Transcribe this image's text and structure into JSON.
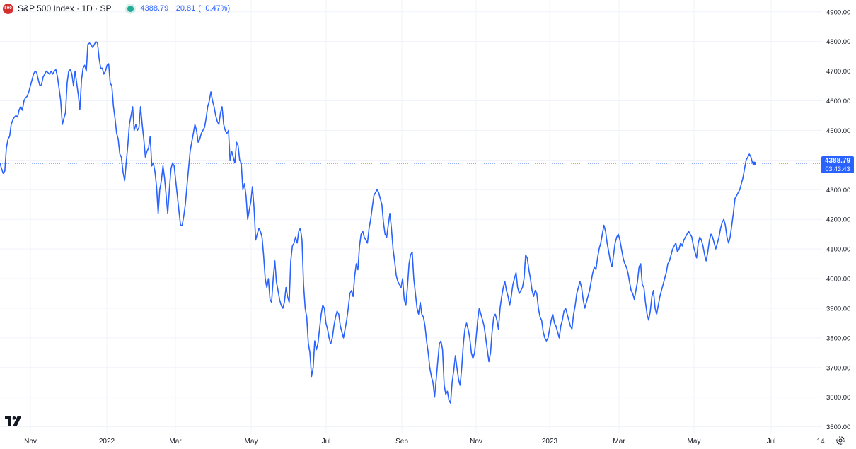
{
  "legend": {
    "logo_text": "500",
    "symbol": "S&P 500 Index · 1D · SP",
    "price": "4388.79",
    "change": "−20.81",
    "change_pct": "(−0.47%)"
  },
  "price_badge": {
    "price": "4388.79",
    "countdown": "03:43:43"
  },
  "icons": {
    "logo": "tradingview-logo",
    "settings": "settings-gear-icon",
    "status": "market-status-dot"
  },
  "colors": {
    "line": "#2962ff",
    "badge": "#2962ff",
    "status_dot": "#22ab94",
    "logo": "#d32f2f",
    "grid": "#f0f3fa",
    "axis_text": "#131722"
  },
  "chart_data": {
    "type": "line",
    "title": "S&P 500 Index · 1D · SP",
    "xlabel": "",
    "ylabel": "",
    "ylim": [
      3480,
      4940
    ],
    "y_ticks": [
      "3500.00",
      "3600.00",
      "3700.00",
      "3800.00",
      "3900.00",
      "4000.00",
      "4100.00",
      "4200.00",
      "4300.00",
      "4400.00",
      "4500.00",
      "4600.00",
      "4700.00",
      "4800.00",
      "4900.00"
    ],
    "x_ticks": [
      "Nov",
      "2022",
      "Mar",
      "May",
      "Jul",
      "Sep",
      "Nov",
      "2023",
      "Mar",
      "May",
      "Jul",
      "14"
    ],
    "last_value": 4388.79,
    "grid": true,
    "series": [
      {
        "values": [
          4390,
          4370,
          4355,
          4363,
          4440,
          4470,
          4480,
          4520,
          4535,
          4545,
          4550,
          4545,
          4570,
          4580,
          4568,
          4600,
          4610,
          4615,
          4630,
          4650,
          4670,
          4690,
          4700,
          4695,
          4670,
          4650,
          4655,
          4680,
          4690,
          4700,
          4695,
          4690,
          4700,
          4690,
          4700,
          4705,
          4680,
          4640,
          4600,
          4520,
          4540,
          4560,
          4660,
          4700,
          4705,
          4690,
          4650,
          4700,
          4660,
          4620,
          4570,
          4670,
          4710,
          4720,
          4700,
          4790,
          4795,
          4790,
          4780,
          4790,
          4800,
          4795,
          4745,
          4710,
          4710,
          4690,
          4700,
          4720,
          4725,
          4660,
          4650,
          4580,
          4540,
          4490,
          4470,
          4420,
          4410,
          4360,
          4330,
          4390,
          4450,
          4520,
          4550,
          4580,
          4500,
          4520,
          4500,
          4510,
          4580,
          4520,
          4470,
          4410,
          4430,
          4440,
          4480,
          4380,
          4390,
          4360,
          4310,
          4220,
          4300,
          4330,
          4380,
          4340,
          4280,
          4220,
          4300,
          4370,
          4390,
          4380,
          4330,
          4280,
          4230,
          4180,
          4180,
          4210,
          4250,
          4310,
          4370,
          4430,
          4460,
          4490,
          4520,
          4500,
          4460,
          4470,
          4490,
          4500,
          4510,
          4540,
          4580,
          4600,
          4630,
          4600,
          4580,
          4550,
          4530,
          4520,
          4560,
          4580,
          4520,
          4500,
          4490,
          4500,
          4400,
          4430,
          4410,
          4390,
          4460,
          4450,
          4400,
          4390,
          4300,
          4320,
          4280,
          4200,
          4230,
          4260,
          4310,
          4240,
          4130,
          4150,
          4170,
          4160,
          4140,
          4080,
          4000,
          3970,
          4000,
          3930,
          3920,
          4000,
          4060,
          3990,
          3960,
          3930,
          3910,
          3900,
          3920,
          3970,
          3940,
          3920,
          4060,
          4110,
          4120,
          4140,
          4120,
          4160,
          4170,
          4130,
          3980,
          3900,
          3870,
          3780,
          3750,
          3670,
          3700,
          3790,
          3760,
          3780,
          3830,
          3880,
          3910,
          3900,
          3850,
          3830,
          3800,
          3780,
          3800,
          3840,
          3870,
          3890,
          3880,
          3840,
          3820,
          3800,
          3830,
          3860,
          3900,
          3950,
          3960,
          3940,
          4010,
          4050,
          4030,
          4110,
          4150,
          4160,
          4140,
          4130,
          4120,
          4170,
          4200,
          4240,
          4280,
          4290,
          4300,
          4290,
          4270,
          4250,
          4190,
          4150,
          4140,
          4180,
          4220,
          4170,
          4100,
          4060,
          4010,
          3990,
          3980,
          3970,
          4000,
          3930,
          3910,
          3970,
          4050,
          4080,
          4090,
          4000,
          3950,
          3900,
          3880,
          3920,
          3880,
          3870,
          3840,
          3790,
          3750,
          3700,
          3670,
          3650,
          3600,
          3660,
          3720,
          3780,
          3790,
          3760,
          3640,
          3610,
          3620,
          3590,
          3580,
          3650,
          3690,
          3740,
          3700,
          3660,
          3640,
          3700,
          3780,
          3830,
          3850,
          3830,
          3800,
          3750,
          3730,
          3750,
          3800,
          3860,
          3900,
          3880,
          3860,
          3840,
          3800,
          3760,
          3720,
          3750,
          3820,
          3870,
          3880,
          3860,
          3830,
          3900,
          3940,
          3970,
          3990,
          3960,
          3940,
          3910,
          3940,
          3980,
          4000,
          4020,
          3970,
          3950,
          3960,
          3970,
          4000,
          4080,
          4070,
          4030,
          4000,
          3960,
          3940,
          3960,
          3950,
          3900,
          3870,
          3860,
          3820,
          3800,
          3790,
          3800,
          3830,
          3860,
          3880,
          3850,
          3840,
          3820,
          3800,
          3840,
          3860,
          3890,
          3900,
          3880,
          3860,
          3840,
          3830,
          3880,
          3910,
          3950,
          3970,
          3990,
          3970,
          3930,
          3900,
          3920,
          3940,
          3960,
          3990,
          4020,
          4040,
          4030,
          4070,
          4100,
          4120,
          4150,
          4180,
          4160,
          4120,
          4090,
          4060,
          4040,
          4080,
          4120,
          4140,
          4150,
          4130,
          4100,
          4070,
          4050,
          4040,
          4020,
          3990,
          3960,
          3950,
          3930,
          3960,
          3990,
          4040,
          4050,
          3980,
          3970,
          3920,
          3880,
          3860,
          3890,
          3940,
          3960,
          3900,
          3880,
          3910,
          3940,
          3960,
          3980,
          4000,
          4020,
          4050,
          4060,
          4080,
          4100,
          4110,
          4120,
          4090,
          4100,
          4120,
          4110,
          4130,
          4140,
          4150,
          4160,
          4150,
          4140,
          4110,
          4090,
          4070,
          4120,
          4140,
          4130,
          4110,
          4080,
          4060,
          4090,
          4130,
          4150,
          4140,
          4120,
          4100,
          4120,
          4140,
          4170,
          4190,
          4200,
          4180,
          4140,
          4120,
          4140,
          4180,
          4220,
          4270,
          4280,
          4290,
          4300,
          4320,
          4340,
          4370,
          4400,
          4410,
          4420,
          4410,
          4390,
          4388.79
        ]
      }
    ]
  }
}
